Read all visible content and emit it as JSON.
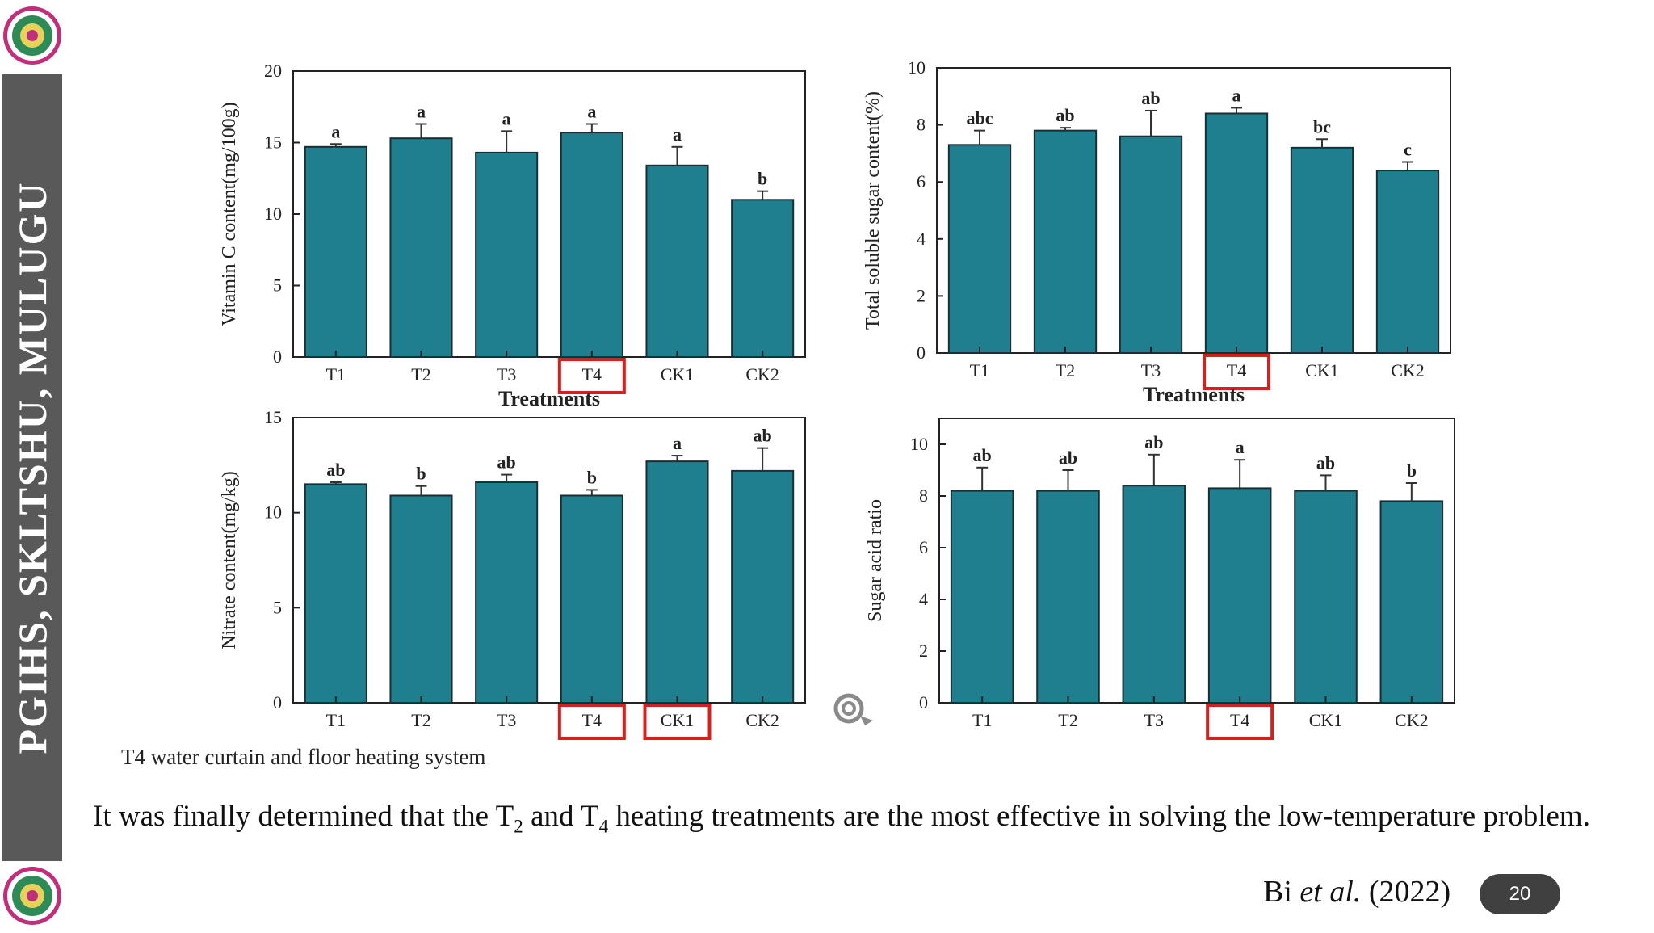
{
  "sidebar": {
    "title": "PGIHS, SKLTSHU, MULUGU"
  },
  "colors": {
    "bar": "#1f7f8e",
    "bar_edge": "#1a2f35",
    "highlight": "#d62020",
    "sidebar": "#595959"
  },
  "chart_data": [
    {
      "type": "bar",
      "categories": [
        "T1",
        "T2",
        "T3",
        "T4",
        "CK1",
        "CK2"
      ],
      "values": [
        14.7,
        15.3,
        14.3,
        15.7,
        13.4,
        11.0
      ],
      "errors": [
        0.2,
        1.0,
        1.5,
        0.6,
        1.3,
        0.6
      ],
      "letters": [
        "a",
        "a",
        "a",
        "a",
        "a",
        "b"
      ],
      "xlabel": "Treatments",
      "ylabel": "Vitamin C content(mg/100g)",
      "ylim": [
        0,
        20
      ],
      "yticks": [
        0,
        5,
        10,
        15,
        20
      ],
      "highlight": [
        "T4"
      ]
    },
    {
      "type": "bar",
      "categories": [
        "T1",
        "T2",
        "T3",
        "T4",
        "CK1",
        "CK2"
      ],
      "values": [
        7.3,
        7.8,
        7.6,
        8.4,
        7.2,
        6.4
      ],
      "errors": [
        0.5,
        0.1,
        0.9,
        0.2,
        0.3,
        0.3
      ],
      "letters": [
        "abc",
        "ab",
        "ab",
        "a",
        "bc",
        "c"
      ],
      "xlabel": "Treatments",
      "ylabel": "Total soluble sugar content(%)",
      "ylim": [
        0,
        10
      ],
      "yticks": [
        0,
        2,
        4,
        6,
        8,
        10
      ],
      "highlight": [
        "T4"
      ]
    },
    {
      "type": "bar",
      "categories": [
        "T1",
        "T2",
        "T3",
        "T4",
        "CK1",
        "CK2"
      ],
      "values": [
        11.5,
        10.9,
        11.6,
        10.9,
        12.7,
        12.2
      ],
      "errors": [
        0.1,
        0.5,
        0.4,
        0.3,
        0.3,
        1.2
      ],
      "letters": [
        "ab",
        "b",
        "ab",
        "b",
        "a",
        "ab"
      ],
      "xlabel": "",
      "ylabel": "Nitrate content(mg/kg)",
      "ylim": [
        0,
        15
      ],
      "yticks": [
        0,
        5,
        10,
        15
      ],
      "highlight": [
        "T4",
        "CK1"
      ]
    },
    {
      "type": "bar",
      "categories": [
        "T1",
        "T2",
        "T3",
        "T4",
        "CK1",
        "CK2"
      ],
      "values": [
        8.2,
        8.2,
        8.4,
        8.3,
        8.2,
        7.8
      ],
      "errors": [
        0.9,
        0.8,
        1.2,
        1.1,
        0.6,
        0.7
      ],
      "letters": [
        "ab",
        "ab",
        "ab",
        "a",
        "ab",
        "b"
      ],
      "xlabel": "",
      "ylabel": "Sugar acid ratio",
      "ylim": [
        0,
        11
      ],
      "yticks": [
        0,
        2,
        4,
        6,
        8,
        10
      ],
      "highlight": [
        "T4"
      ]
    }
  ],
  "caption": "T4 water curtain and  floor heating system",
  "conclusion": {
    "part1": "It was finally determined that the T",
    "sub1": "2",
    "part2": " and T",
    "sub2": "4",
    "part3": " heating treatments are the most effective in solving the low-temperature problem."
  },
  "citation": {
    "author": "Bi ",
    "etal": "et al.",
    "year": " (2022)"
  },
  "page_number": "20"
}
